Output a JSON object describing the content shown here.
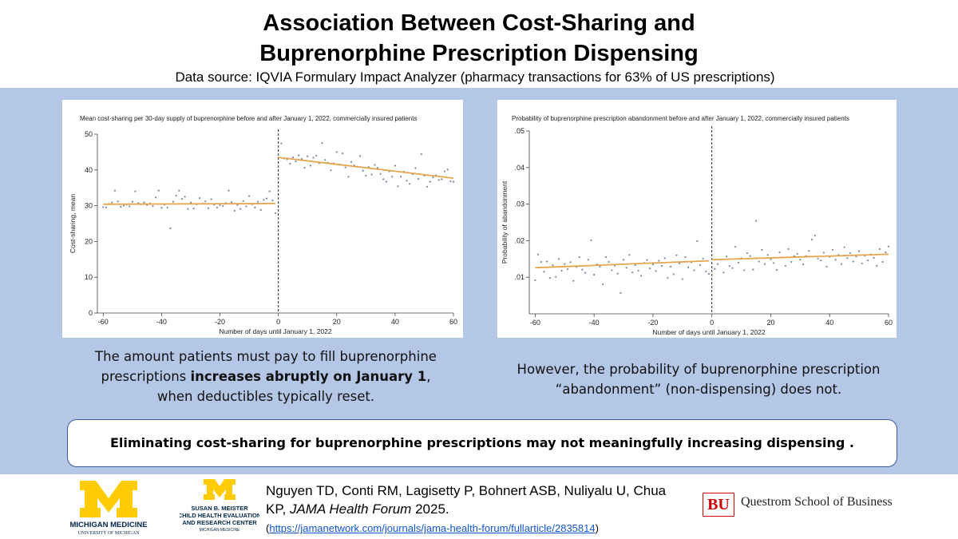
{
  "header": {
    "title_line1": "Association Between Cost-Sharing and",
    "title_line2": "Buprenorphine Prescription Dispensing",
    "source": "Data source: IQVIA Formulary Impact Analyzer (pharmacy transactions for 63% of US prescriptions)"
  },
  "colors": {
    "band": "#b4c7e7",
    "fit_line": "#e8a44a",
    "points": "#7f8fa6",
    "title_blue": "#00274c",
    "maize": "#ffcb05",
    "bu_red": "#cc0000"
  },
  "chart_data": [
    {
      "type": "scatter",
      "title": "Mean cost-sharing per 30-day supply of buprenorphine before and after January 1, 2022, commercially insured patients",
      "xlabel": "Number of days until January 1, 2022",
      "ylabel": "Cost-sharing, mean",
      "xlim": [
        -62,
        60
      ],
      "ylim": [
        0,
        50
      ],
      "xticks": [
        -60,
        -40,
        -20,
        0,
        20,
        40,
        60
      ],
      "yticks": [
        0,
        10,
        20,
        30,
        40,
        50
      ],
      "cutoff": 0,
      "fit_lines": [
        {
          "x": [
            -60,
            -1
          ],
          "y": [
            30.4,
            30.6
          ]
        },
        {
          "x": [
            0,
            60
          ],
          "y": [
            43.5,
            37.7
          ]
        }
      ],
      "points": [
        [
          -60,
          29.6
        ],
        [
          -59,
          29.5
        ],
        [
          -58,
          30.5
        ],
        [
          -57,
          30.9
        ],
        [
          -56,
          34.2
        ],
        [
          -55,
          31.2
        ],
        [
          -54,
          29.7
        ],
        [
          -53,
          30.0
        ],
        [
          -52,
          30.3
        ],
        [
          -51,
          29.8
        ],
        [
          -50,
          31.1
        ],
        [
          -49,
          34.0
        ],
        [
          -48,
          30.7
        ],
        [
          -47,
          30.4
        ],
        [
          -46,
          30.9
        ],
        [
          -45,
          30.2
        ],
        [
          -44,
          30.6
        ],
        [
          -43,
          29.9
        ],
        [
          -42,
          32.3
        ],
        [
          -41,
          34.2
        ],
        [
          -40,
          29.4
        ],
        [
          -39,
          30.3
        ],
        [
          -38,
          29.5
        ],
        [
          -37,
          23.7
        ],
        [
          -36,
          31.1
        ],
        [
          -35,
          32.8
        ],
        [
          -34,
          34.2
        ],
        [
          -33,
          31.9
        ],
        [
          -32,
          32.5
        ],
        [
          -31,
          29.1
        ],
        [
          -30,
          30.9
        ],
        [
          -29,
          29.2
        ],
        [
          -28,
          30.4
        ],
        [
          -27,
          32.1
        ],
        [
          -26,
          30.6
        ],
        [
          -25,
          31.2
        ],
        [
          -24,
          29.3
        ],
        [
          -23,
          31.8
        ],
        [
          -22,
          30.3
        ],
        [
          -21,
          29.5
        ],
        [
          -20,
          30.1
        ],
        [
          -19,
          29.9
        ],
        [
          -18,
          30.7
        ],
        [
          -17,
          34.2
        ],
        [
          -16,
          31.0
        ],
        [
          -15,
          28.6
        ],
        [
          -14,
          30.2
        ],
        [
          -13,
          29.1
        ],
        [
          -12,
          31.3
        ],
        [
          -11,
          29.8
        ],
        [
          -10,
          32.7
        ],
        [
          -9,
          30.4
        ],
        [
          -8,
          29.5
        ],
        [
          -7,
          31.1
        ],
        [
          -6,
          28.8
        ],
        [
          -5,
          31.6
        ],
        [
          -4,
          32.0
        ],
        [
          -3,
          34.0
        ],
        [
          -2,
          31.5
        ],
        [
          -1,
          27.9
        ],
        [
          1,
          47.4
        ],
        [
          2,
          43.2
        ],
        [
          3,
          43.0
        ],
        [
          4,
          41.7
        ],
        [
          5,
          43.5
        ],
        [
          6,
          42.4
        ],
        [
          7,
          44.1
        ],
        [
          8,
          43.1
        ],
        [
          9,
          40.6
        ],
        [
          10,
          43.8
        ],
        [
          11,
          41.2
        ],
        [
          12,
          43.4
        ],
        [
          13,
          44.0
        ],
        [
          14,
          41.9
        ],
        [
          15,
          47.5
        ],
        [
          16,
          42.8
        ],
        [
          17,
          42.0
        ],
        [
          18,
          39.9
        ],
        [
          19,
          41.8
        ],
        [
          20,
          45.0
        ],
        [
          21,
          41.5
        ],
        [
          22,
          44.6
        ],
        [
          23,
          40.7
        ],
        [
          24,
          38.1
        ],
        [
          25,
          42.2
        ],
        [
          26,
          41.3
        ],
        [
          27,
          40.9
        ],
        [
          28,
          43.9
        ],
        [
          29,
          39.8
        ],
        [
          30,
          38.4
        ],
        [
          31,
          40.8
        ],
        [
          32,
          38.7
        ],
        [
          33,
          41.4
        ],
        [
          34,
          40.6
        ],
        [
          35,
          38.9
        ],
        [
          36,
          37.4
        ],
        [
          37,
          36.7
        ],
        [
          38,
          39.6
        ],
        [
          39,
          38.1
        ],
        [
          40,
          41.2
        ],
        [
          41,
          35.4
        ],
        [
          42,
          38.1
        ],
        [
          43,
          39.5
        ],
        [
          44,
          37.0
        ],
        [
          45,
          36.1
        ],
        [
          46,
          38.8
        ],
        [
          47,
          40.5
        ],
        [
          48,
          37.5
        ],
        [
          49,
          44.4
        ],
        [
          50,
          38.4
        ],
        [
          51,
          35.3
        ],
        [
          52,
          36.7
        ],
        [
          53,
          37.9
        ],
        [
          54,
          38.5
        ],
        [
          55,
          37.2
        ],
        [
          56,
          37.4
        ],
        [
          57,
          39.6
        ],
        [
          58,
          40.1
        ],
        [
          59,
          36.8
        ],
        [
          60,
          36.7
        ]
      ]
    },
    {
      "type": "scatter",
      "title": "Probability of buprenorphine prescription abandonment before and after January 1, 2022, commercially insured patients",
      "xlabel": "Number of days until January 1, 2022",
      "ylabel": "Probability of abandonment",
      "xlim": [
        -62,
        60
      ],
      "ylim": [
        0,
        0.05
      ],
      "xticks": [
        -60,
        -40,
        -20,
        0,
        20,
        40,
        60
      ],
      "yticks": [
        ".01",
        ".02",
        ".03",
        ".04",
        ".05"
      ],
      "yticks_values": [
        0.01,
        0.02,
        0.03,
        0.04,
        0.05
      ],
      "ytick_labels": [
        ".01",
        ".02",
        ".03",
        ".04",
        ".05"
      ],
      "cutoff": 0,
      "fit_lines": [
        {
          "x": [
            -60,
            -1
          ],
          "y": [
            0.0126,
            0.0145
          ]
        },
        {
          "x": [
            0,
            60
          ],
          "y": [
            0.0148,
            0.0163
          ]
        }
      ],
      "points": [
        [
          -60,
          0.0092
        ],
        [
          -59,
          0.0162
        ],
        [
          -58,
          0.0142
        ],
        [
          -57,
          0.0115
        ],
        [
          -56,
          0.0143
        ],
        [
          -55,
          0.0098
        ],
        [
          -54,
          0.0133
        ],
        [
          -53,
          0.0101
        ],
        [
          -52,
          0.015
        ],
        [
          -51,
          0.0118
        ],
        [
          -50,
          0.0136
        ],
        [
          -49,
          0.0122
        ],
        [
          -48,
          0.0141
        ],
        [
          -47,
          0.009
        ],
        [
          -46,
          0.0128
        ],
        [
          -45,
          0.0155
        ],
        [
          -44,
          0.0121
        ],
        [
          -43,
          0.0112
        ],
        [
          -42,
          0.0148
        ],
        [
          -41,
          0.0201
        ],
        [
          -40,
          0.0107
        ],
        [
          -39,
          0.0135
        ],
        [
          -38,
          0.0129
        ],
        [
          -37,
          0.0081
        ],
        [
          -36,
          0.0155
        ],
        [
          -35,
          0.0142
        ],
        [
          -34,
          0.0119
        ],
        [
          -33,
          0.0132
        ],
        [
          -32,
          0.011
        ],
        [
          -31,
          0.0057
        ],
        [
          -30,
          0.0148
        ],
        [
          -29,
          0.0126
        ],
        [
          -28,
          0.0161
        ],
        [
          -27,
          0.0113
        ],
        [
          -26,
          0.0133
        ],
        [
          -25,
          0.0118
        ],
        [
          -24,
          0.0104
        ],
        [
          -23,
          0.0139
        ],
        [
          -22,
          0.0147
        ],
        [
          -21,
          0.0124
        ],
        [
          -20,
          0.0135
        ],
        [
          -19,
          0.0117
        ],
        [
          -18,
          0.0145
        ],
        [
          -17,
          0.0131
        ],
        [
          -16,
          0.0152
        ],
        [
          -15,
          0.0098
        ],
        [
          -14,
          0.0129
        ],
        [
          -13,
          0.0108
        ],
        [
          -12,
          0.016
        ],
        [
          -11,
          0.0138
        ],
        [
          -10,
          0.0095
        ],
        [
          -9,
          0.0155
        ],
        [
          -8,
          0.0127
        ],
        [
          -7,
          0.0141
        ],
        [
          -6,
          0.0119
        ],
        [
          -5,
          0.0199
        ],
        [
          -4,
          0.0133
        ],
        [
          -3,
          0.0151
        ],
        [
          -2,
          0.0116
        ],
        [
          -1,
          0.0109
        ],
        [
          1,
          0.0123
        ],
        [
          2,
          0.0136
        ],
        [
          3,
          0.0148
        ],
        [
          4,
          0.0113
        ],
        [
          5,
          0.0157
        ],
        [
          6,
          0.0131
        ],
        [
          7,
          0.0125
        ],
        [
          8,
          0.0183
        ],
        [
          9,
          0.014
        ],
        [
          10,
          0.0152
        ],
        [
          11,
          0.0119
        ],
        [
          12,
          0.0166
        ],
        [
          13,
          0.0158
        ],
        [
          14,
          0.0121
        ],
        [
          15,
          0.0254
        ],
        [
          16,
          0.0143
        ],
        [
          17,
          0.0175
        ],
        [
          18,
          0.0136
        ],
        [
          19,
          0.0161
        ],
        [
          20,
          0.0149
        ],
        [
          21,
          0.0139
        ],
        [
          22,
          0.012
        ],
        [
          23,
          0.0168
        ],
        [
          24,
          0.0154
        ],
        [
          25,
          0.0131
        ],
        [
          26,
          0.0177
        ],
        [
          27,
          0.0142
        ],
        [
          28,
          0.0158
        ],
        [
          29,
          0.0164
        ],
        [
          30,
          0.0148
        ],
        [
          31,
          0.0135
        ],
        [
          32,
          0.0158
        ],
        [
          33,
          0.0172
        ],
        [
          34,
          0.0203
        ],
        [
          35,
          0.0214
        ],
        [
          36,
          0.0151
        ],
        [
          37,
          0.0146
        ],
        [
          38,
          0.0167
        ],
        [
          39,
          0.0129
        ],
        [
          40,
          0.0156
        ],
        [
          41,
          0.0175
        ],
        [
          42,
          0.0148
        ],
        [
          43,
          0.0161
        ],
        [
          44,
          0.0136
        ],
        [
          45,
          0.0182
        ],
        [
          46,
          0.0152
        ],
        [
          47,
          0.0166
        ],
        [
          48,
          0.0143
        ],
        [
          49,
          0.0157
        ],
        [
          50,
          0.0171
        ],
        [
          51,
          0.0138
        ],
        [
          52,
          0.0159
        ],
        [
          53,
          0.0146
        ],
        [
          54,
          0.0162
        ],
        [
          55,
          0.0153
        ],
        [
          56,
          0.0131
        ],
        [
          57,
          0.0177
        ],
        [
          58,
          0.0142
        ],
        [
          59,
          0.0168
        ],
        [
          60,
          0.0184
        ]
      ]
    }
  ],
  "captions": {
    "left_line1": "The amount patients must pay to fill buprenorphine",
    "left_line2_pre": "prescriptions ",
    "left_line2_bold": "increases abruptly on January 1",
    "left_line2_post": ",",
    "left_line3": "when deductibles typically reset.",
    "right_line1": "However, the probability of buprenorphine prescription",
    "right_line2": "“abandonment” (non-dispensing) does not."
  },
  "callout": "Eliminating cost-sharing for buprenorphine prescriptions may not meaningfully increasing dispensing .",
  "footer": {
    "um_logo1_line1": "MICHIGAN MEDICINE",
    "um_logo1_line2": "UNIVERSITY OF MICHIGAN",
    "um_logo2_line1": "SUSAN B. MEISTER",
    "um_logo2_line2": "CHILD HEALTH EVALUATION",
    "um_logo2_line3": "AND RESEARCH CENTER",
    "um_logo2_line4": "MICHIGAN MEDICINE",
    "citation_authors": "Nguyen TD, Conti RM, Lagisetty P, Bohnert ASB, Nuliyalu U, Chua KP, ",
    "citation_journal": "JAMA Health Forum",
    "citation_year": " 2025.",
    "citation_open": "(",
    "citation_url": "https://jamanetwork.com/journals/jama-health-forum/fullarticle/2835814",
    "citation_close": ")",
    "bu_mark": "BU",
    "bu_name": "Questrom School of Business"
  }
}
